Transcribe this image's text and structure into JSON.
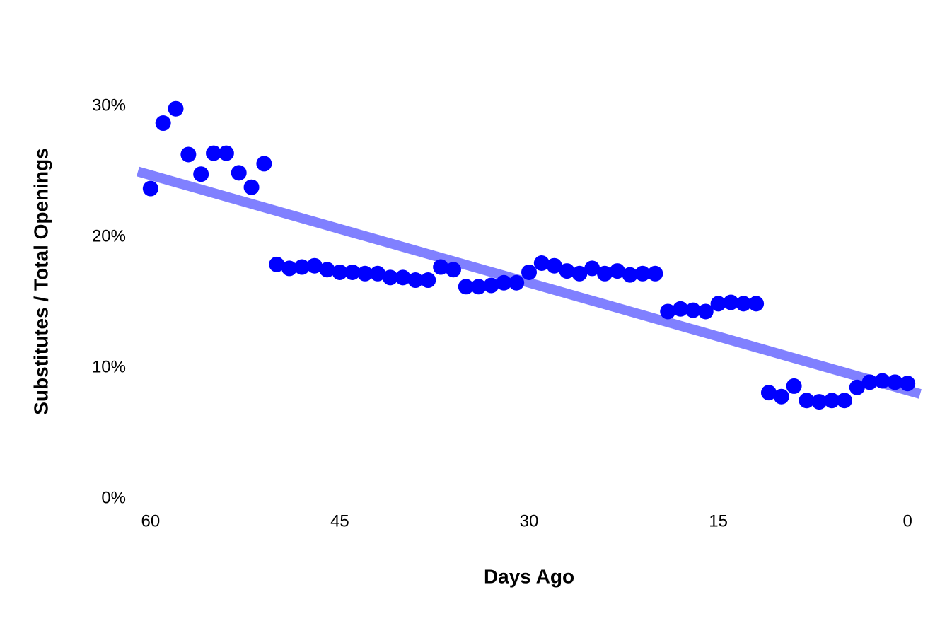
{
  "chart_data": {
    "type": "scatter",
    "x_label": "Days Ago",
    "y_label": "Substitutes / Total Openings",
    "xlim": [
      61,
      -1
    ],
    "ylim": [
      0,
      30
    ],
    "xticks": [
      60,
      45,
      30,
      15,
      0
    ],
    "yticks": [
      {
        "value": 0,
        "label": "0%"
      },
      {
        "value": 10,
        "label": "10%"
      },
      {
        "value": 20,
        "label": "20%"
      },
      {
        "value": 30,
        "label": "30%"
      }
    ],
    "grid": false,
    "color": "#0000ff",
    "x": [
      60,
      59,
      58,
      57,
      56,
      55,
      54,
      53,
      52,
      51,
      50,
      49,
      48,
      47,
      46,
      45,
      44,
      43,
      42,
      41,
      40,
      39,
      38,
      37,
      36,
      35,
      34,
      33,
      32,
      31,
      30,
      29,
      28,
      27,
      26,
      25,
      24,
      23,
      22,
      21,
      20,
      19,
      18,
      17,
      16,
      15,
      14,
      13,
      12,
      11,
      10,
      9,
      8,
      7,
      6,
      5,
      4,
      3,
      2,
      1,
      0
    ],
    "values": [
      23.7,
      28.7,
      29.8,
      26.3,
      24.8,
      26.4,
      26.4,
      24.9,
      23.8,
      25.6,
      17.9,
      17.6,
      17.7,
      17.8,
      17.5,
      17.3,
      17.3,
      17.2,
      17.2,
      16.9,
      16.9,
      16.7,
      16.7,
      17.7,
      17.5,
      16.2,
      16.2,
      16.3,
      16.5,
      16.5,
      17.3,
      18.0,
      17.8,
      17.4,
      17.2,
      17.6,
      17.2,
      17.4,
      17.1,
      17.2,
      17.2,
      14.3,
      14.5,
      14.4,
      14.3,
      14.9,
      15.0,
      14.9,
      14.9,
      8.1,
      7.8,
      8.6,
      7.5,
      7.4,
      7.5,
      7.5,
      8.5,
      8.9,
      9.0,
      8.9,
      8.8
    ],
    "trend": {
      "x": [
        61,
        -1
      ],
      "values": [
        25.0,
        8.0
      ],
      "color": "#8080ff"
    }
  }
}
